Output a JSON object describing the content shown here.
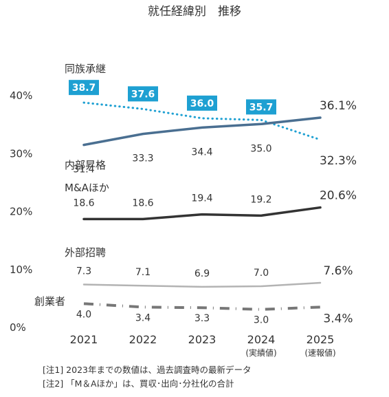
{
  "chart_data": {
    "type": "line",
    "title": "就任経緯別　推移",
    "categories": [
      "2021",
      "2022",
      "2023",
      "2024",
      "2025"
    ],
    "category_sublabels": [
      "",
      "",
      "",
      "(実績値)",
      "(速報値)"
    ],
    "y_ticks": [
      "0%",
      "10%",
      "20%",
      "30%",
      "40%"
    ],
    "ylim": [
      0,
      42
    ],
    "grid": false,
    "series": [
      {
        "name": "同族承継",
        "values": [
          38.7,
          37.6,
          36.0,
          35.7,
          32.3
        ],
        "labels": [
          "38.7",
          "37.6",
          "36.0",
          "35.7",
          "32.3%"
        ],
        "color": "#1ea0d2",
        "style": "dotted",
        "label_style": "boxed"
      },
      {
        "name": "内部昇格",
        "values": [
          31.4,
          33.3,
          34.4,
          35.0,
          36.1
        ],
        "labels": [
          "31.4",
          "33.3",
          "34.4",
          "35.0",
          "36.1%"
        ],
        "color": "#4a6f91",
        "style": "solid"
      },
      {
        "name": "M&Aほか",
        "values": [
          18.6,
          18.6,
          19.4,
          19.2,
          20.6
        ],
        "labels": [
          "18.6",
          "18.6",
          "19.4",
          "19.2",
          "20.6%"
        ],
        "color": "#333333",
        "style": "solid"
      },
      {
        "name": "外部招聘",
        "values": [
          7.3,
          7.1,
          6.9,
          7.0,
          7.6
        ],
        "labels": [
          "7.3",
          "7.1",
          "6.9",
          "7.0",
          "7.6%"
        ],
        "color": "#b3b3b3",
        "style": "solid"
      },
      {
        "name": "創業者",
        "values": [
          4.0,
          3.4,
          3.3,
          3.0,
          3.4
        ],
        "labels": [
          "4.0",
          "3.4",
          "3.3",
          "3.0",
          "3.4%"
        ],
        "color": "#777777",
        "style": "dashdot"
      }
    ]
  },
  "notes": [
    "[注1] 2023年までの数値は、過去調査時の最新データ",
    "[注2] 「M＆Aほか」は、買収･出向･分社化の合計"
  ]
}
